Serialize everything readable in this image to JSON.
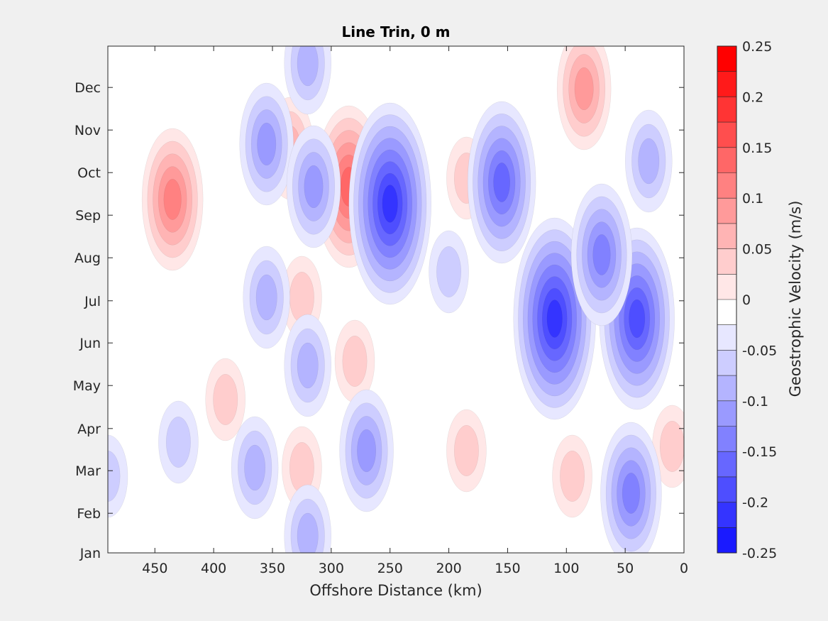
{
  "chart_data": {
    "type": "contour",
    "title": "Line Trin, 0 m",
    "xlabel": "Offshore Distance (km)",
    "ylabel": "",
    "x_ticks": [
      450,
      400,
      350,
      300,
      250,
      200,
      150,
      100,
      50,
      0
    ],
    "xlim": [
      490,
      0
    ],
    "x_reversed": true,
    "y_ticks": [
      "Jan",
      "Feb",
      "Mar",
      "Apr",
      "May",
      "Jun",
      "Jul",
      "Aug",
      "Sep",
      "Oct",
      "Nov",
      "Dec"
    ],
    "y_tick_values": [
      0,
      0.93,
      1.93,
      2.92,
      3.93,
      4.93,
      5.92,
      6.93,
      7.93,
      8.93,
      9.93,
      10.93
    ],
    "ylim": [
      0,
      11.9
    ],
    "colorbar": {
      "label": "Geostrophic Velocity (m/s)",
      "tick_labels": [
        "0.25",
        "0.2",
        "0.15",
        "0.1",
        "0.05",
        "0",
        "-0.05",
        "-0.1",
        "-0.15",
        "-0.2",
        "-0.25"
      ],
      "levels": [
        0.25,
        0.225,
        0.2,
        0.175,
        0.15,
        0.125,
        0.1,
        0.075,
        0.05,
        0.025,
        0,
        -0.025,
        -0.05,
        -0.075,
        -0.1,
        -0.125,
        -0.15,
        -0.175,
        -0.2,
        -0.225,
        -0.25
      ],
      "colors": [
        "#ff0000",
        "#ff1a1a",
        "#ff3434",
        "#ff4e4e",
        "#ff6767",
        "#ff8181",
        "#ff9a9a",
        "#ffb4b4",
        "#ffcdcd",
        "#ffe7e7",
        "#ffffff",
        "#ffffff",
        "#e7e7ff",
        "#cdcdff",
        "#b4b4ff",
        "#9a9aff",
        "#8181ff",
        "#6767ff",
        "#4e4eff",
        "#3434ff",
        "#1a1aff",
        "#0000ff"
      ]
    },
    "features": [
      {
        "kind": "positive",
        "x": 435,
        "y": 8.3,
        "peak": 0.12
      },
      {
        "kind": "positive",
        "x": 285,
        "y": 8.6,
        "peak": 0.15
      },
      {
        "kind": "positive",
        "x": 185,
        "y": 8.8,
        "peak": 0.05
      },
      {
        "kind": "positive",
        "x": 85,
        "y": 10.9,
        "peak": 0.1
      },
      {
        "kind": "positive",
        "x": 335,
        "y": 9.5,
        "peak": 0.08
      },
      {
        "kind": "positive",
        "x": 325,
        "y": 6.0,
        "peak": 0.06
      },
      {
        "kind": "positive",
        "x": 325,
        "y": 2.0,
        "peak": 0.06
      },
      {
        "kind": "positive",
        "x": 95,
        "y": 1.8,
        "peak": 0.06
      },
      {
        "kind": "positive",
        "x": 390,
        "y": 3.6,
        "peak": 0.05
      },
      {
        "kind": "positive",
        "x": 280,
        "y": 4.5,
        "peak": 0.04
      },
      {
        "kind": "positive",
        "x": 185,
        "y": 2.4,
        "peak": 0.05
      },
      {
        "kind": "positive",
        "x": 10,
        "y": 2.5,
        "peak": 0.04
      },
      {
        "kind": "negative",
        "x": 355,
        "y": 9.6,
        "peak": -0.11
      },
      {
        "kind": "negative",
        "x": 250,
        "y": 8.2,
        "peak": -0.2
      },
      {
        "kind": "negative",
        "x": 315,
        "y": 8.6,
        "peak": -0.11
      },
      {
        "kind": "negative",
        "x": 155,
        "y": 8.7,
        "peak": -0.15
      },
      {
        "kind": "negative",
        "x": 110,
        "y": 5.5,
        "peak": -0.21
      },
      {
        "kind": "negative",
        "x": 40,
        "y": 5.5,
        "peak": -0.17
      },
      {
        "kind": "negative",
        "x": 70,
        "y": 7.0,
        "peak": -0.12
      },
      {
        "kind": "negative",
        "x": 355,
        "y": 6.0,
        "peak": -0.08
      },
      {
        "kind": "negative",
        "x": 270,
        "y": 2.4,
        "peak": -0.1
      },
      {
        "kind": "negative",
        "x": 45,
        "y": 1.4,
        "peak": -0.12
      },
      {
        "kind": "negative",
        "x": 30,
        "y": 9.2,
        "peak": -0.07
      },
      {
        "kind": "negative",
        "x": 320,
        "y": 11.5,
        "peak": -0.07
      },
      {
        "kind": "negative",
        "x": 320,
        "y": 0.4,
        "peak": -0.07
      },
      {
        "kind": "negative",
        "x": 365,
        "y": 2.0,
        "peak": -0.07
      },
      {
        "kind": "negative",
        "x": 320,
        "y": 4.4,
        "peak": -0.07
      },
      {
        "kind": "negative",
        "x": 430,
        "y": 2.6,
        "peak": -0.05
      },
      {
        "kind": "negative",
        "x": 200,
        "y": 6.6,
        "peak": -0.05
      },
      {
        "kind": "negative",
        "x": 490,
        "y": 1.8,
        "peak": -0.04
      }
    ]
  }
}
